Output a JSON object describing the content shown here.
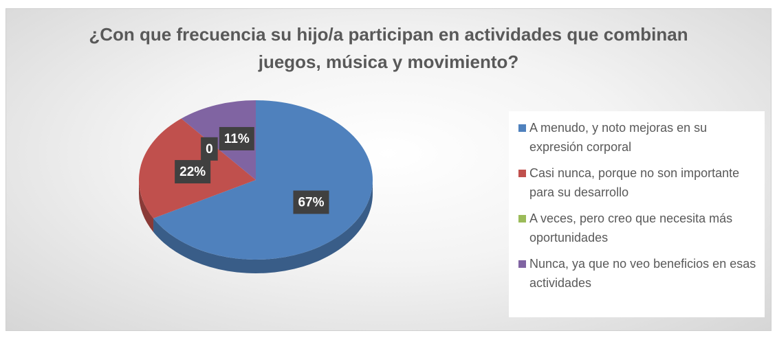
{
  "chart_data": {
    "type": "pie",
    "title": "¿Con que frecuencia su hijo/a participan en actividades que combinan juegos, música y movimiento?",
    "categories": [
      "A menudo, y noto mejoras en su expresión corporal",
      "Casi nunca, porque no son importante para su desarrollo",
      "A veces, pero creo que necesita más oportunidades",
      "Nunca, ya que no veo beneficios en esas actividades"
    ],
    "values": [
      67,
      22,
      0,
      11
    ],
    "value_labels": [
      "67%",
      "22%",
      "0",
      "11%"
    ],
    "colors": [
      "#4f81bd",
      "#c0504d",
      "#9bbb59",
      "#8064a2"
    ],
    "legend": "right"
  }
}
